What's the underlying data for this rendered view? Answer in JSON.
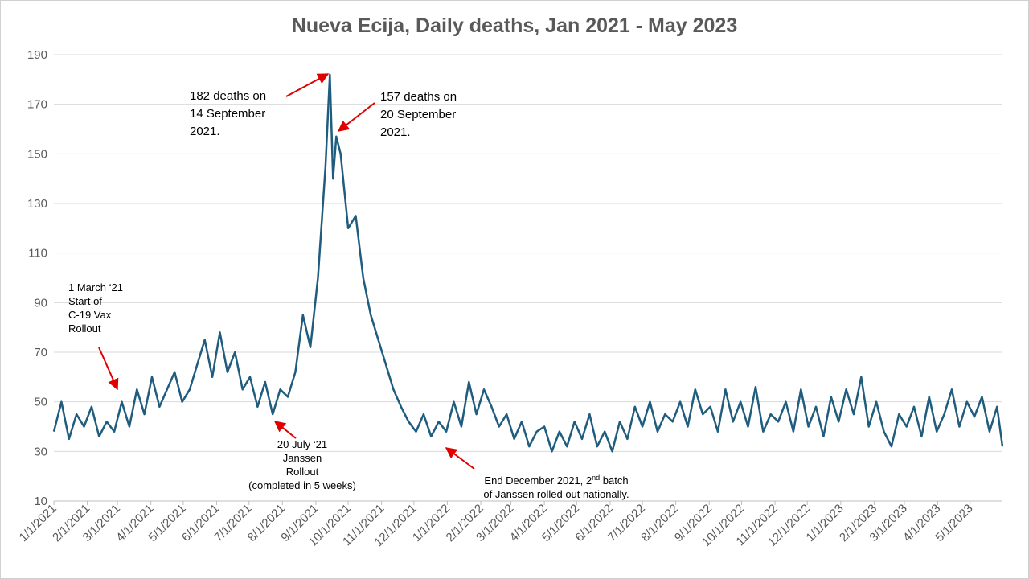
{
  "chart_data": {
    "type": "line",
    "title": "Nueva Ecija, Daily deaths, Jan 2021 - May 2023",
    "x": [
      "1/1/2021",
      "1/8/2021",
      "1/15/2021",
      "1/22/2021",
      "1/29/2021",
      "2/5/2021",
      "2/12/2021",
      "2/19/2021",
      "2/26/2021",
      "3/5/2021",
      "3/12/2021",
      "3/19/2021",
      "3/26/2021",
      "4/2/2021",
      "4/9/2021",
      "4/16/2021",
      "4/23/2021",
      "4/30/2021",
      "5/7/2021",
      "5/14/2021",
      "5/21/2021",
      "5/28/2021",
      "6/4/2021",
      "6/11/2021",
      "6/18/2021",
      "6/25/2021",
      "7/2/2021",
      "7/9/2021",
      "7/16/2021",
      "7/23/2021",
      "7/30/2021",
      "8/6/2021",
      "8/13/2021",
      "8/20/2021",
      "8/27/2021",
      "9/3/2021",
      "9/10/2021",
      "9/14/2021",
      "9/17/2021",
      "9/20/2021",
      "9/24/2021",
      "10/1/2021",
      "10/8/2021",
      "10/15/2021",
      "10/22/2021",
      "10/29/2021",
      "11/5/2021",
      "11/12/2021",
      "11/19/2021",
      "11/26/2021",
      "12/3/2021",
      "12/10/2021",
      "12/17/2021",
      "12/24/2021",
      "12/31/2021",
      "1/7/2022",
      "1/14/2022",
      "1/21/2022",
      "1/28/2022",
      "2/4/2022",
      "2/11/2022",
      "2/18/2022",
      "2/25/2022",
      "3/4/2022",
      "3/11/2022",
      "3/18/2022",
      "3/25/2022",
      "4/1/2022",
      "4/8/2022",
      "4/15/2022",
      "4/22/2022",
      "4/29/2022",
      "5/6/2022",
      "5/13/2022",
      "5/20/2022",
      "5/27/2022",
      "6/3/2022",
      "6/10/2022",
      "6/17/2022",
      "6/24/2022",
      "7/1/2022",
      "7/8/2022",
      "7/15/2022",
      "7/22/2022",
      "7/29/2022",
      "8/5/2022",
      "8/12/2022",
      "8/19/2022",
      "8/26/2022",
      "9/2/2022",
      "9/9/2022",
      "9/16/2022",
      "9/23/2022",
      "9/30/2022",
      "10/7/2022",
      "10/14/2022",
      "10/21/2022",
      "10/28/2022",
      "11/4/2022",
      "11/11/2022",
      "11/18/2022",
      "11/25/2022",
      "12/2/2022",
      "12/9/2022",
      "12/16/2022",
      "12/23/2022",
      "12/30/2022",
      "1/6/2023",
      "1/13/2023",
      "1/20/2023",
      "1/27/2023",
      "2/3/2023",
      "2/10/2023",
      "2/17/2023",
      "2/24/2023",
      "3/3/2023",
      "3/10/2023",
      "3/17/2023",
      "3/24/2023",
      "3/31/2023",
      "4/7/2023",
      "4/14/2023",
      "4/21/2023",
      "4/28/2023",
      "5/5/2023",
      "5/12/2023",
      "5/19/2023",
      "5/26/2023",
      "5/31/2023"
    ],
    "series": [
      {
        "name": "Daily deaths",
        "color": "#1f5c7e",
        "values": [
          38,
          50,
          35,
          45,
          40,
          48,
          36,
          42,
          38,
          50,
          40,
          55,
          45,
          60,
          48,
          55,
          62,
          50,
          55,
          65,
          75,
          60,
          78,
          62,
          70,
          55,
          60,
          48,
          58,
          45,
          55,
          52,
          62,
          85,
          72,
          100,
          145,
          182,
          140,
          157,
          150,
          120,
          125,
          100,
          85,
          75,
          65,
          55,
          48,
          42,
          38,
          45,
          36,
          42,
          38,
          50,
          40,
          58,
          45,
          55,
          48,
          40,
          45,
          35,
          42,
          32,
          38,
          40,
          30,
          38,
          32,
          42,
          35,
          45,
          32,
          38,
          30,
          42,
          35,
          48,
          40,
          50,
          38,
          45,
          42,
          50,
          40,
          55,
          45,
          48,
          38,
          55,
          42,
          50,
          40,
          56,
          38,
          45,
          42,
          50,
          38,
          55,
          40,
          48,
          36,
          52,
          42,
          55,
          45,
          60,
          40,
          50,
          38,
          32,
          45,
          40,
          48,
          36,
          52,
          38,
          45,
          55,
          40,
          50,
          44,
          52,
          38,
          48,
          32
        ]
      }
    ],
    "xlim": [
      "1/1/2021",
      "5/31/2023"
    ],
    "xticks": [
      "1/1/2021",
      "2/1/2021",
      "3/1/2021",
      "4/1/2021",
      "5/1/2021",
      "6/1/2021",
      "7/1/2021",
      "8/1/2021",
      "9/1/2021",
      "10/1/2021",
      "11/1/2021",
      "12/1/2021",
      "1/1/2022",
      "2/1/2022",
      "3/1/2022",
      "4/1/2022",
      "5/1/2022",
      "6/1/2022",
      "7/1/2022",
      "8/1/2022",
      "9/1/2022",
      "10/1/2022",
      "11/1/2022",
      "12/1/2022",
      "1/1/2023",
      "2/1/2023",
      "3/1/2023",
      "4/1/2023",
      "5/1/2023"
    ],
    "ylim": [
      10,
      190
    ],
    "yticks": [
      10,
      30,
      50,
      70,
      90,
      110,
      130,
      150,
      170,
      190
    ],
    "grid": true,
    "annotations": [
      {
        "lines": [
          "182 deaths on",
          "14 September",
          "2021."
        ]
      },
      {
        "lines": [
          "157 deaths on",
          "20 September",
          "2021."
        ]
      },
      {
        "lines": [
          "1 March ‘21",
          "Start of",
          "C-19 Vax",
          "Rollout"
        ]
      },
      {
        "lines": [
          "20 July ‘21",
          "Janssen",
          "Rollout",
          "(completed in 5 weeks)"
        ]
      },
      {
        "lines": [
          {
            "text": "End December 2021, 2",
            "sup": "nd",
            "rest": " batch"
          },
          "of Janssen rolled out nationally."
        ]
      }
    ]
  }
}
